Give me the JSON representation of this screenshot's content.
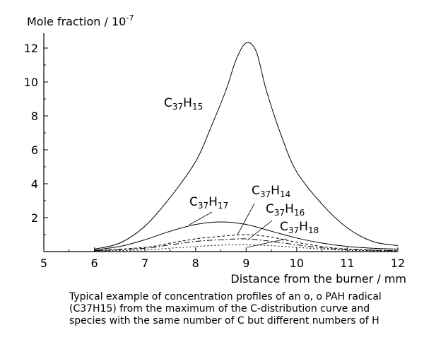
{
  "caption": "Typical example of concentration profiles of an o, o PAH radical (C37H15) from the maximum of the C-distribution curve and species with the same number of C but different numbers of H",
  "chart_data": {
    "type": "line",
    "title": "",
    "xlabel": "Distance from the burner / mm",
    "ylabel": "Mole fraction / 10",
    "ylabel_exponent": "-7",
    "xlim": [
      5,
      12
    ],
    "ylim": [
      0,
      13
    ],
    "xticks": [
      5,
      6,
      7,
      8,
      9,
      10,
      11,
      12
    ],
    "yticks": [
      2,
      4,
      6,
      8,
      10,
      12
    ],
    "grid": false,
    "series": [
      {
        "name": "C37H15",
        "label_parts": {
          "base": "C",
          "sub1": "37",
          "mid": "H",
          "sub2": "15"
        },
        "dash": "solid",
        "x": [
          6.0,
          6.5,
          7.0,
          7.5,
          8.0,
          8.3,
          8.6,
          8.8,
          9.0,
          9.2,
          9.4,
          9.7,
          10.0,
          10.5,
          11.0,
          11.5,
          12.0
        ],
        "y": [
          0.15,
          0.5,
          1.5,
          3.2,
          5.3,
          7.3,
          9.5,
          11.3,
          12.3,
          11.8,
          9.5,
          6.8,
          4.7,
          2.8,
          1.4,
          0.6,
          0.35
        ]
      },
      {
        "name": "C37H17",
        "label_parts": {
          "base": "C",
          "sub1": "37",
          "mid": "H",
          "sub2": "17"
        },
        "dash": "solid",
        "x": [
          6.0,
          6.5,
          7.0,
          7.5,
          8.0,
          8.5,
          9.0,
          9.5,
          10.0,
          10.5,
          11.0,
          11.5,
          12.0
        ],
        "y": [
          0.1,
          0.3,
          0.7,
          1.2,
          1.6,
          1.75,
          1.6,
          1.2,
          0.8,
          0.5,
          0.3,
          0.2,
          0.15
        ]
      },
      {
        "name": "C37H14",
        "label_parts": {
          "base": "C",
          "sub1": "37",
          "mid": "H",
          "sub2": "14"
        },
        "dash": "4,3",
        "x": [
          6.0,
          7.0,
          7.5,
          8.0,
          8.5,
          9.0,
          9.5,
          10.0,
          10.5,
          11.0,
          12.0
        ],
        "y": [
          0.05,
          0.25,
          0.5,
          0.75,
          0.9,
          1.0,
          0.85,
          0.55,
          0.3,
          0.15,
          0.05
        ]
      },
      {
        "name": "C37H16",
        "label_parts": {
          "base": "C",
          "sub1": "37",
          "mid": "H",
          "sub2": "16"
        },
        "dash": "8,3,2,3",
        "x": [
          6.0,
          7.0,
          7.5,
          8.0,
          8.5,
          9.0,
          9.5,
          10.0,
          10.5,
          11.0,
          12.0
        ],
        "y": [
          0.05,
          0.2,
          0.4,
          0.6,
          0.7,
          0.75,
          0.6,
          0.4,
          0.22,
          0.12,
          0.05
        ]
      },
      {
        "name": "C37H18",
        "label_parts": {
          "base": "C",
          "sub1": "37",
          "mid": "H",
          "sub2": "18"
        },
        "dash": "2,3",
        "x": [
          6.0,
          7.0,
          7.5,
          8.0,
          8.5,
          9.0,
          9.5,
          10.0,
          10.5,
          11.0,
          12.0
        ],
        "y": [
          0.03,
          0.1,
          0.2,
          0.3,
          0.38,
          0.4,
          0.35,
          0.25,
          0.15,
          0.08,
          0.03
        ]
      }
    ]
  }
}
